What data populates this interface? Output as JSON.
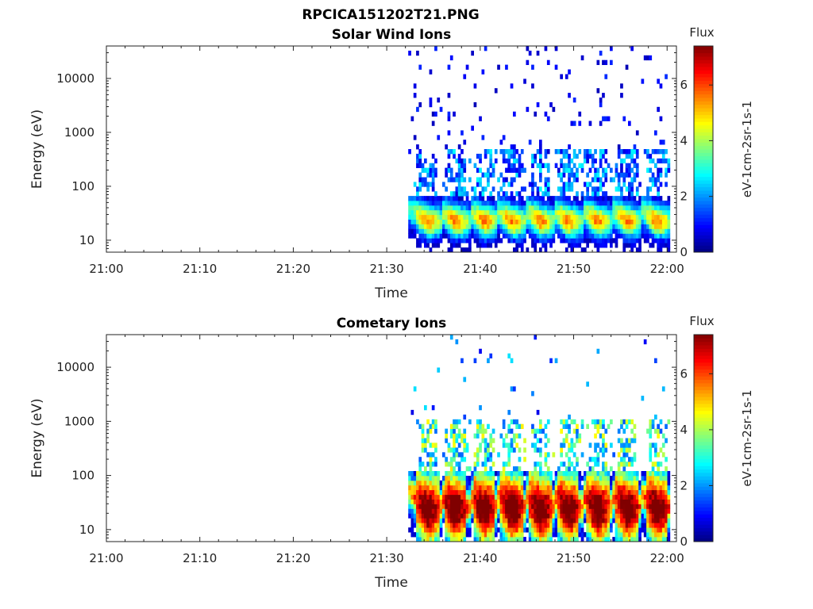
{
  "figure_title": "RPCICA151202T21.PNG",
  "chart_data": [
    {
      "type": "heatmap",
      "title": "Solar Wind Ions",
      "xlabel": "Time",
      "ylabel": "Energy (eV)",
      "x_ticks": [
        "21:00",
        "21:10",
        "21:20",
        "21:30",
        "21:40",
        "21:50",
        "22:00"
      ],
      "x_range_minutes": [
        0,
        61
      ],
      "y_scale": "log",
      "y_ticks": [
        "10",
        "100",
        "1000",
        "10000"
      ],
      "y_range": [
        6,
        40000
      ],
      "colorbar": {
        "title": "Flux",
        "label": "eV-1cm-2sr-1s-1",
        "ticks": [
          "0",
          "2",
          "4",
          "6"
        ],
        "range": [
          0,
          7.4
        ]
      },
      "data_start_minute": 32.3,
      "data_end_minute": 60.2,
      "bursts_minute": [
        34.2,
        37.2,
        40.3,
        43.3,
        46.3,
        49.3,
        52.4,
        55.6,
        58.8
      ],
      "peak_flux": 4.8
    },
    {
      "type": "heatmap",
      "title": "Cometary Ions",
      "xlabel": "Time",
      "ylabel": "Energy (eV)",
      "x_ticks": [
        "21:00",
        "21:10",
        "21:20",
        "21:30",
        "21:40",
        "21:50",
        "22:00"
      ],
      "x_range_minutes": [
        0,
        61
      ],
      "y_scale": "log",
      "y_ticks": [
        "10",
        "100",
        "1000",
        "10000"
      ],
      "y_range": [
        6,
        40000
      ],
      "colorbar": {
        "title": "Flux",
        "label": "eV-1cm-2sr-1s-1",
        "ticks": [
          "0",
          "2",
          "4",
          "6"
        ],
        "range": [
          0,
          7.4
        ]
      },
      "data_start_minute": 32.3,
      "data_end_minute": 60.2,
      "bursts_minute": [
        34.2,
        37.2,
        40.3,
        43.3,
        46.3,
        49.3,
        52.4,
        55.6,
        58.8
      ],
      "peak_flux": 7.0
    }
  ]
}
